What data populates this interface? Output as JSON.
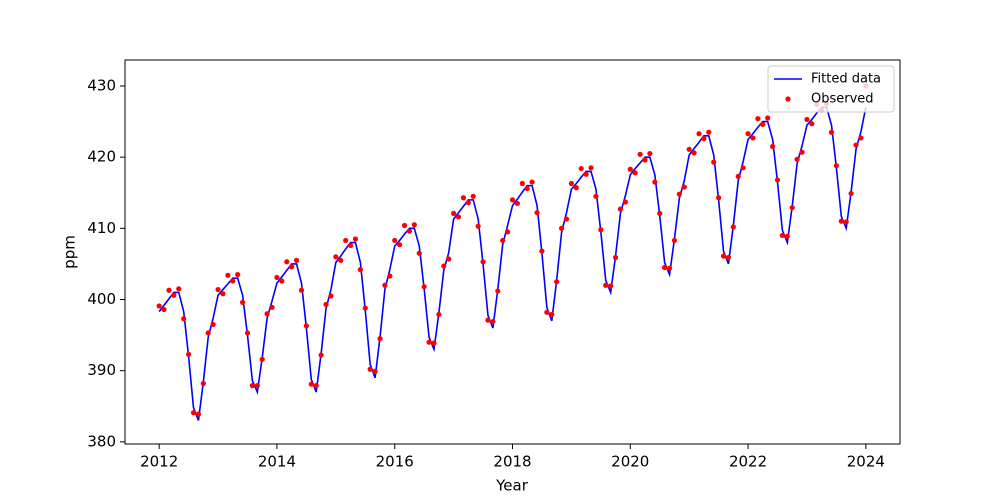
{
  "chart_data": {
    "type": "line",
    "x_label": "Year",
    "y_label": "ppm",
    "x": [
      2012,
      2012.083,
      2012.167,
      2012.25,
      2012.333,
      2012.417,
      2012.5,
      2012.583,
      2012.667,
      2012.75,
      2012.833,
      2012.917,
      2013,
      2013.083,
      2013.167,
      2013.25,
      2013.333,
      2013.417,
      2013.5,
      2013.583,
      2013.667,
      2013.75,
      2013.833,
      2013.917,
      2014,
      2014.083,
      2014.167,
      2014.25,
      2014.333,
      2014.417,
      2014.5,
      2014.583,
      2014.667,
      2014.75,
      2014.833,
      2014.917,
      2015,
      2015.083,
      2015.167,
      2015.25,
      2015.333,
      2015.417,
      2015.5,
      2015.583,
      2015.667,
      2015.75,
      2015.833,
      2015.917,
      2016,
      2016.083,
      2016.167,
      2016.25,
      2016.333,
      2016.417,
      2016.5,
      2016.583,
      2016.667,
      2016.75,
      2016.833,
      2016.917,
      2017,
      2017.083,
      2017.167,
      2017.25,
      2017.333,
      2017.417,
      2017.5,
      2017.583,
      2017.667,
      2017.75,
      2017.833,
      2017.917,
      2018,
      2018.083,
      2018.167,
      2018.25,
      2018.333,
      2018.417,
      2018.5,
      2018.583,
      2018.667,
      2018.75,
      2018.833,
      2018.917,
      2019,
      2019.083,
      2019.167,
      2019.25,
      2019.333,
      2019.417,
      2019.5,
      2019.583,
      2019.667,
      2019.75,
      2019.833,
      2019.917,
      2020,
      2020.083,
      2020.167,
      2020.25,
      2020.333,
      2020.417,
      2020.5,
      2020.583,
      2020.667,
      2020.75,
      2020.833,
      2020.917,
      2021,
      2021.083,
      2021.167,
      2021.25,
      2021.333,
      2021.417,
      2021.5,
      2021.583,
      2021.667,
      2021.75,
      2021.833,
      2021.917,
      2022,
      2022.083,
      2022.167,
      2022.25,
      2022.333,
      2022.417,
      2022.5,
      2022.583,
      2022.667,
      2022.75,
      2022.833,
      2022.917,
      2023,
      2023.083,
      2023.167,
      2023.25,
      2023.333,
      2023.417,
      2023.5,
      2023.583,
      2023.667,
      2023.75,
      2023.833,
      2023.917,
      2024
    ],
    "series": [
      {
        "name": "Fitted data",
        "color": "#0000ff",
        "style": "line",
        "values": [
          398.3,
          399.2,
          400.1,
          401,
          401,
          398.3,
          392,
          384.8,
          383,
          388.4,
          394.7,
          397.4,
          400.6,
          401.4,
          402.2,
          403,
          403,
          400.6,
          395,
          388.6,
          387,
          391.8,
          397.4,
          399.8,
          402.3,
          403.2,
          404.1,
          405,
          405,
          402.3,
          396,
          388.8,
          387,
          392.4,
          398.7,
          401.4,
          405.2,
          406.1,
          407.1,
          408,
          408,
          405.2,
          398.5,
          390.9,
          389,
          394.7,
          401.4,
          404.2,
          407.5,
          408.3,
          409.2,
          410,
          410,
          407.5,
          401.5,
          394.7,
          393,
          398.1,
          404.1,
          406.6,
          411.3,
          412.2,
          413.1,
          414,
          414,
          411.3,
          405,
          397.8,
          396,
          401.4,
          407.7,
          410.4,
          413.2,
          414.1,
          415.1,
          416,
          416,
          413.2,
          406.5,
          398.9,
          397,
          402.7,
          409.4,
          412.2,
          415.5,
          416.3,
          417.2,
          418,
          418,
          415.5,
          409.5,
          402.7,
          401,
          406.1,
          412.1,
          414.6,
          417.5,
          418.4,
          419.2,
          420,
          420,
          417.5,
          411.8,
          405.2,
          403.5,
          408.5,
          414.2,
          416.7,
          420.3,
          421.2,
          422.1,
          423,
          423,
          420.3,
          414,
          406.8,
          405,
          410.4,
          416.7,
          419.4,
          422.5,
          423.3,
          424.2,
          425,
          425,
          422.5,
          416.5,
          409.7,
          408,
          413.1,
          419.1,
          421.6,
          424.5,
          425.3,
          426.2,
          427,
          427,
          424.5,
          418.5,
          411.7,
          410,
          415.1,
          421.1,
          423.6,
          427
        ]
      },
      {
        "name": "Observed",
        "color": "#ff0000",
        "style": "scatter",
        "values": [
          399.1,
          398.6,
          401.3,
          400.6,
          401.5,
          397.3,
          392.3,
          384.1,
          383.9,
          388.2,
          395.3,
          396.5,
          401.4,
          400.8,
          403.4,
          402.6,
          403.5,
          399.6,
          395.3,
          387.9,
          387.9,
          391.6,
          398.0,
          398.9,
          403.1,
          402.6,
          405.3,
          404.6,
          405.5,
          401.3,
          396.3,
          388.1,
          387.9,
          392.2,
          399.3,
          400.5,
          406.0,
          405.5,
          408.3,
          407.6,
          408.5,
          404.2,
          398.8,
          390.2,
          389.9,
          394.5,
          402.0,
          403.3,
          408.3,
          407.7,
          410.4,
          409.6,
          410.5,
          406.5,
          401.8,
          394.0,
          393.9,
          397.9,
          404.7,
          405.7,
          412.1,
          411.6,
          414.3,
          413.6,
          414.5,
          410.3,
          405.3,
          397.1,
          396.9,
          401.2,
          408.3,
          409.5,
          414.0,
          413.5,
          416.3,
          415.6,
          416.5,
          412.2,
          406.8,
          398.2,
          397.9,
          402.5,
          410.0,
          411.3,
          416.3,
          415.7,
          418.4,
          417.6,
          418.5,
          414.5,
          409.8,
          402.0,
          401.9,
          405.9,
          412.7,
          413.7,
          418.3,
          417.8,
          420.4,
          419.6,
          420.5,
          416.5,
          412.1,
          404.5,
          404.4,
          408.3,
          414.8,
          415.8,
          421.1,
          420.6,
          423.3,
          422.6,
          423.5,
          419.3,
          414.3,
          406.1,
          405.9,
          410.2,
          417.3,
          418.5,
          423.3,
          422.7,
          425.4,
          424.6,
          425.5,
          421.5,
          416.8,
          409.0,
          408.9,
          412.9,
          419.7,
          420.7,
          425.3,
          424.7,
          427.4,
          426.6,
          427.5,
          423.5,
          418.8,
          411.0,
          410.9,
          414.9,
          421.7,
          422.7,
          430
        ]
      }
    ],
    "xlim": [
      2011.42,
      2024.58
    ],
    "xticks": [
      2012,
      2014,
      2016,
      2018,
      2020,
      2022,
      2024
    ],
    "ylim": [
      379.7,
      433.65
    ],
    "yticks": [
      380,
      390,
      400,
      410,
      420,
      430
    ],
    "legend": "upper right"
  }
}
